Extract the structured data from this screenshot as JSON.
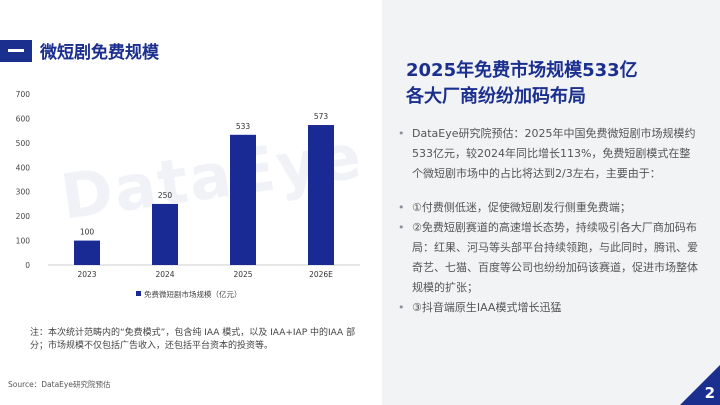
{
  "section": {
    "title": "微短剧免费规模"
  },
  "headline": {
    "line1": "2025年免费市场规模533亿",
    "line2": "各大厂商纷纷加码布局"
  },
  "bullets": [
    "DataEye研究院预估：2025年中国免费微短剧市场规模约533亿元，较2024年同比增长113%，免费短剧模式在整个微短剧市场中的占比将达到2/3左右，主要由于：",
    "①付费侧低迷，促使微短剧发行侧重免费端；",
    "②免费短剧赛道的高速增长态势，持续吸引各大厂商加码布局：红果、河马等头部平台持续领跑，与此同时，腾讯、爱奇艺、七猫、百度等公司也纷纷加码该赛道，促进市场整体规模的扩张；",
    "③抖音端原生IAA模式增长迅猛"
  ],
  "note": "注：本次统计范畴内的“免费模式”，包含纯 IAA 模式，以及 IAA+IAP 中的IAA 部分；市场规模不仅包括广告收入，还包括平台资本的投资等。",
  "source": "Source：DataEye研究院预估",
  "watermark": "DataEye",
  "page_number": "2",
  "colors": {
    "accent": "#1b2f8f",
    "bar": "#1a2a94"
  },
  "chart_data": {
    "type": "bar",
    "categories": [
      "2023",
      "2024",
      "2025",
      "2026E"
    ],
    "series": [
      {
        "name": "免费微短剧市场规模（亿元）",
        "values": [
          100,
          250,
          533,
          573
        ]
      }
    ],
    "y_ticks": [
      "0",
      "100",
      "200",
      "300",
      "400",
      "500",
      "600",
      "700"
    ],
    "ylim": [
      0,
      700
    ],
    "grid": false,
    "legend": "bottom",
    "data_labels": [
      "100",
      "250",
      "533",
      "573"
    ]
  }
}
